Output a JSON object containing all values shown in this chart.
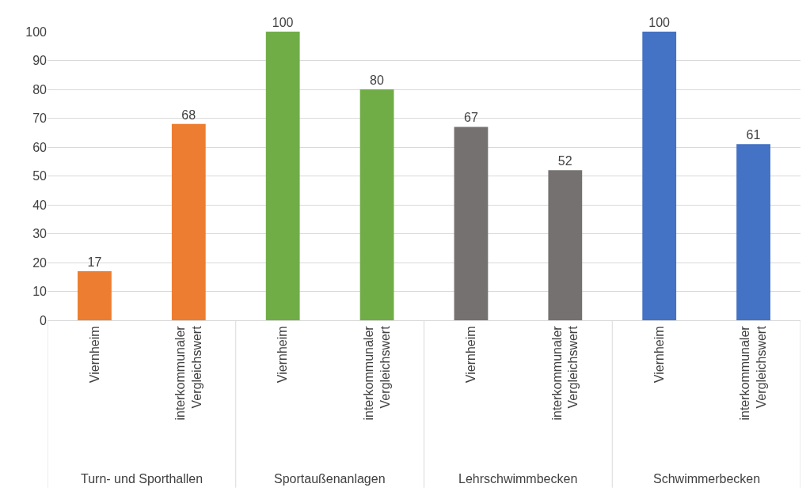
{
  "chart_data": {
    "type": "bar",
    "categories": [
      "Viernheim",
      "interkommunaler Vergleichswert",
      "Viernheim",
      "interkommunaler Vergleichswert",
      "Viernheim",
      "interkommunaler Vergleichswert",
      "Viernheim",
      "interkommunaler Vergleichswert"
    ],
    "values": [
      17,
      68,
      100,
      80,
      67,
      52,
      100,
      61
    ],
    "colors": [
      "#ed7d31",
      "#ed7d31",
      "#70ad47",
      "#70ad47",
      "#767171",
      "#767171",
      "#4472c4",
      "#4472c4"
    ],
    "ylim": [
      0,
      100
    ],
    "yticks": [
      0,
      10,
      20,
      30,
      40,
      50,
      60,
      70,
      80,
      90,
      100
    ],
    "grid": "y",
    "data_labels": true,
    "annotations": [
      "Turn- und Sporthallen",
      "Sportaußenanlagen",
      "Lehrschwimmbecken",
      "Schwimmerbecken"
    ]
  }
}
